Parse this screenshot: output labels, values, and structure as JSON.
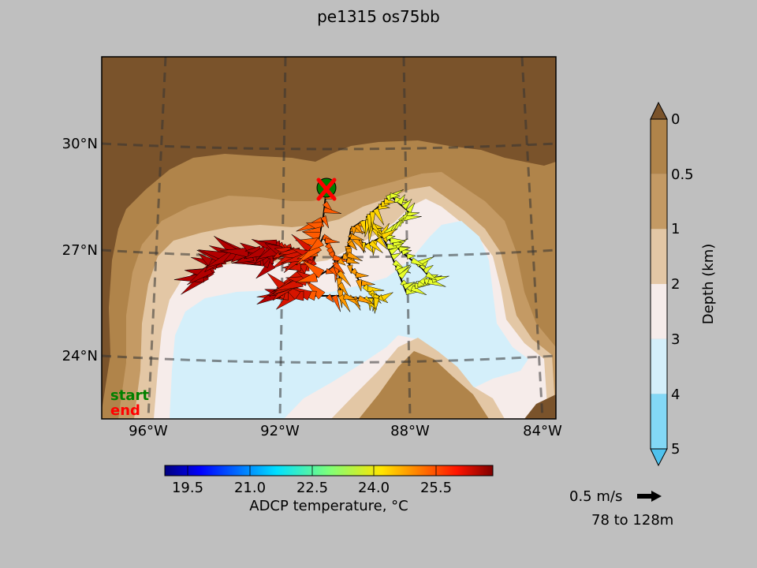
{
  "title": "pe1315 os75bb",
  "map": {
    "lat_labels": [
      "30°N",
      "27°N",
      "24°N"
    ],
    "lon_labels": [
      "96°W",
      "92°W",
      "88°W",
      "84°W"
    ],
    "legend_start": "start",
    "legend_end": "end",
    "start_color": "#008000",
    "end_color": "#ff0000"
  },
  "depth_colorbar": {
    "label": "Depth (km)",
    "tick_labels": [
      "0",
      "0.5",
      "1",
      "2",
      "3",
      "4",
      "5"
    ],
    "colors": [
      "#b0844a",
      "#c49a64",
      "#e3c7a5",
      "#f6ecea",
      "#d4effa",
      "#83d8f6",
      "#4fc2ee"
    ],
    "land_color": "#7a532b"
  },
  "temp_colorbar": {
    "label": "ADCP temperature, °C",
    "tick_labels": [
      "19.5",
      "21.0",
      "22.5",
      "24.0",
      "25.5"
    ]
  },
  "vector_key": {
    "speed_label": "0.5 m/s",
    "depth_range": "78 to 128m"
  }
}
